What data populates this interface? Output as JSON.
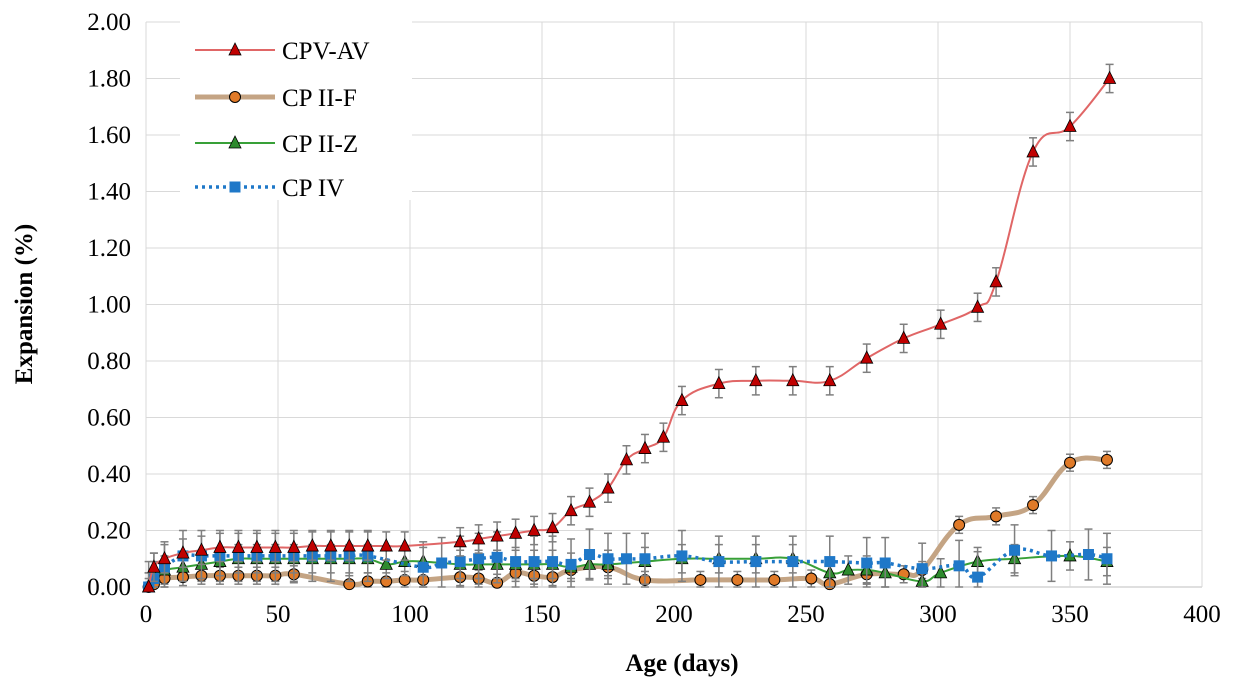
{
  "chart_data": {
    "type": "line",
    "xlabel": "Age (days)",
    "ylabel": "Expansion (%)",
    "xlim": [
      0,
      400
    ],
    "ylim": [
      0,
      2
    ],
    "x_ticks": [
      "0",
      "50",
      "100",
      "150",
      "200",
      "250",
      "300",
      "350",
      "400"
    ],
    "y_ticks": [
      "0.00",
      "0.20",
      "0.40",
      "0.60",
      "0.80",
      "1.00",
      "1.20",
      "1.40",
      "1.60",
      "1.80",
      "2.00"
    ],
    "grid": true,
    "legend_position": "top-left",
    "series": [
      {
        "name": "CPV-AV",
        "color": "#e06666",
        "marker": "triangle",
        "marker_fill": "#c00000",
        "x": [
          1,
          3,
          7,
          14,
          21,
          28,
          35,
          42,
          49,
          56,
          63,
          70,
          77,
          84,
          91,
          98,
          119,
          126,
          133,
          140,
          147,
          154,
          161,
          168,
          175,
          182,
          189,
          196,
          203,
          217,
          231,
          245,
          259,
          273,
          287,
          301,
          315,
          322,
          336,
          350,
          365
        ],
        "y": [
          0.0,
          0.07,
          0.1,
          0.12,
          0.13,
          0.14,
          0.14,
          0.14,
          0.14,
          0.14,
          0.145,
          0.145,
          0.145,
          0.145,
          0.145,
          0.145,
          0.16,
          0.17,
          0.18,
          0.19,
          0.2,
          0.21,
          0.27,
          0.3,
          0.35,
          0.45,
          0.49,
          0.53,
          0.66,
          0.72,
          0.73,
          0.73,
          0.73,
          0.81,
          0.88,
          0.93,
          0.99,
          1.08,
          1.54,
          1.63,
          1.8
        ],
        "error": 0.05
      },
      {
        "name": "CP II-F",
        "color": "#c4a484",
        "marker": "circle",
        "marker_fill": "#e07a28",
        "x": [
          1,
          3,
          7,
          14,
          21,
          28,
          35,
          42,
          49,
          56,
          77,
          84,
          91,
          98,
          105,
          119,
          126,
          133,
          140,
          147,
          154,
          161,
          175,
          189,
          210,
          224,
          238,
          252,
          259,
          273,
          287,
          294,
          308,
          322,
          336,
          350,
          364
        ],
        "y": [
          0.0,
          0.01,
          0.03,
          0.035,
          0.04,
          0.04,
          0.04,
          0.04,
          0.04,
          0.045,
          0.01,
          0.02,
          0.02,
          0.025,
          0.025,
          0.035,
          0.03,
          0.015,
          0.05,
          0.04,
          0.035,
          0.06,
          0.07,
          0.025,
          0.025,
          0.025,
          0.025,
          0.03,
          0.01,
          0.045,
          0.045,
          0.06,
          0.22,
          0.25,
          0.29,
          0.44,
          0.45
        ],
        "error": 0.03
      },
      {
        "name": "CP II-Z",
        "color": "#38a038",
        "marker": "triangle",
        "marker_fill": "#2e8b2e",
        "x": [
          1,
          3,
          7,
          14,
          21,
          28,
          35,
          42,
          49,
          56,
          63,
          70,
          77,
          84,
          91,
          98,
          105,
          119,
          126,
          133,
          140,
          147,
          154,
          161,
          168,
          175,
          189,
          203,
          217,
          231,
          245,
          259,
          266,
          273,
          280,
          294,
          301,
          315,
          329,
          350,
          364
        ],
        "y": [
          0.0,
          0.04,
          0.06,
          0.07,
          0.08,
          0.09,
          0.1,
          0.1,
          0.1,
          0.1,
          0.1,
          0.1,
          0.1,
          0.1,
          0.08,
          0.09,
          0.09,
          0.08,
          0.08,
          0.08,
          0.08,
          0.08,
          0.08,
          0.07,
          0.08,
          0.08,
          0.09,
          0.1,
          0.1,
          0.1,
          0.1,
          0.05,
          0.06,
          0.06,
          0.05,
          0.02,
          0.05,
          0.09,
          0.1,
          0.11,
          0.09
        ],
        "error": 0.05
      },
      {
        "name": "CP IV",
        "color": "#1f78c8",
        "marker": "square",
        "marker_fill": "#1f78c8",
        "x": [
          1,
          3,
          7,
          14,
          21,
          28,
          35,
          42,
          49,
          56,
          63,
          70,
          77,
          84,
          105,
          112,
          119,
          126,
          133,
          140,
          147,
          154,
          161,
          168,
          175,
          182,
          189,
          203,
          217,
          231,
          245,
          259,
          273,
          280,
          294,
          308,
          315,
          329,
          343,
          357,
          364
        ],
        "y": [
          0.0,
          0.03,
          0.07,
          0.11,
          0.11,
          0.11,
          0.11,
          0.11,
          0.11,
          0.11,
          0.11,
          0.11,
          0.11,
          0.11,
          0.07,
          0.085,
          0.09,
          0.1,
          0.105,
          0.09,
          0.09,
          0.09,
          0.08,
          0.115,
          0.1,
          0.1,
          0.1,
          0.11,
          0.09,
          0.09,
          0.09,
          0.09,
          0.085,
          0.085,
          0.065,
          0.075,
          0.035,
          0.13,
          0.11,
          0.115,
          0.1
        ],
        "error": 0.09
      }
    ]
  }
}
